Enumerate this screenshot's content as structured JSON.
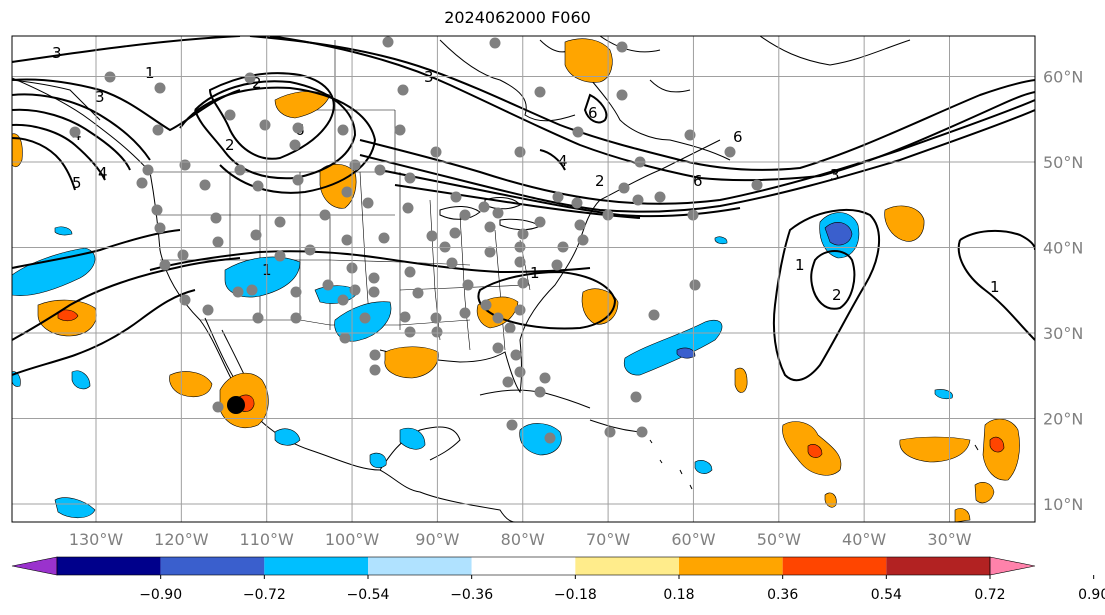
{
  "title": "2024062000 F060",
  "map": {
    "lat_labels": [
      "60°N",
      "50°N",
      "40°N",
      "30°N",
      "20°N",
      "10°N"
    ],
    "lat_values": [
      60,
      50,
      40,
      30,
      20,
      10
    ],
    "lon_labels": [
      "130°W",
      "120°W",
      "110°W",
      "100°W",
      "90°W",
      "80°W",
      "70°W",
      "60°W",
      "50°W",
      "40°W",
      "30°W"
    ],
    "lon_values": [
      -130,
      -120,
      -110,
      -100,
      -90,
      -80,
      -70,
      -60,
      -50,
      -40,
      -30
    ],
    "grid": true
  },
  "contour_labels": [
    "3",
    "1",
    "3",
    "2",
    "6",
    "4",
    "5",
    "4",
    "2",
    "3",
    "6",
    "4",
    "2",
    "6",
    "6",
    "3",
    "1",
    "1",
    "2",
    "1",
    "1"
  ],
  "colorbar": {
    "ticks": [
      "−0.90",
      "−0.72",
      "−0.54",
      "−0.36",
      "−0.18",
      "0.18",
      "0.36",
      "0.54",
      "0.72",
      "0.90"
    ],
    "colors": [
      "#9a32cd",
      "#00008b",
      "#3a5fcd",
      "#00bfff",
      "#b0e2ff",
      "#ffffff",
      "#ffec8b",
      "#ffa500",
      "#ff4500",
      "#b22222",
      "#ff82ab"
    ]
  },
  "colors": {
    "pos_light": "#ffa500",
    "pos_mid": "#ff4500",
    "pos_dark": "#b22222",
    "neg_light": "#00bfff",
    "neg_mid": "#3a5fcd",
    "station_marker": "#808080",
    "storm_marker": "#000000"
  }
}
